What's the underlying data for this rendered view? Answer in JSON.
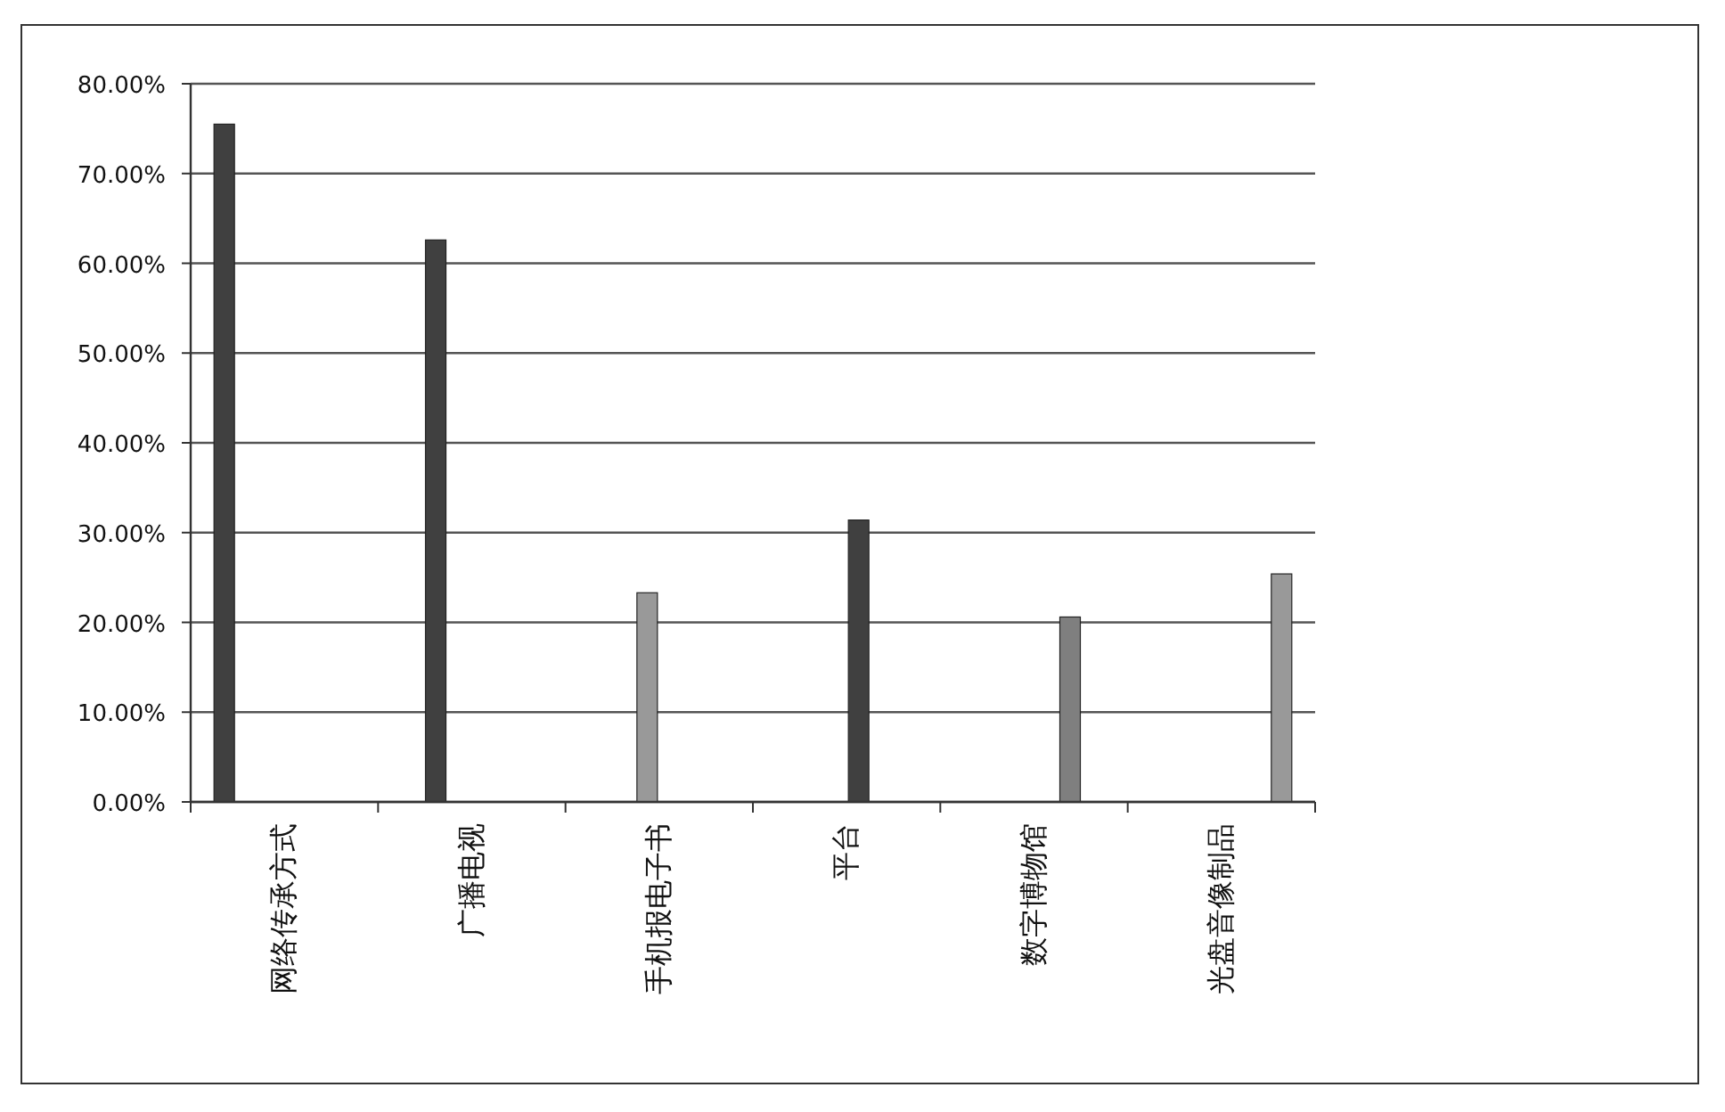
{
  "chart_data": {
    "type": "bar",
    "categories": [
      "网络传承方式",
      "广播电视",
      "手机报电子书",
      "平台",
      "数字博物馆",
      "光盘音像制品"
    ],
    "series": [
      {
        "color": "#404040",
        "values": [
          75.5,
          null,
          null,
          null,
          null,
          null
        ]
      },
      {
        "color": "#404040",
        "values": [
          null,
          62.6,
          null,
          null,
          null,
          null
        ]
      },
      {
        "color": "#999999",
        "values": [
          null,
          null,
          23.3,
          null,
          null,
          null
        ]
      },
      {
        "color": "#404040",
        "values": [
          null,
          null,
          null,
          31.4,
          null,
          null
        ]
      },
      {
        "color": "#7f7f7f",
        "values": [
          null,
          null,
          null,
          null,
          20.6,
          null
        ]
      },
      {
        "color": "#999999",
        "values": [
          null,
          null,
          null,
          null,
          null,
          25.4
        ]
      }
    ],
    "ylim": [
      0,
      80
    ],
    "yticks": [
      {
        "value": 0,
        "label": "0.00%"
      },
      {
        "value": 10,
        "label": "10.00%"
      },
      {
        "value": 20,
        "label": "20.00%"
      },
      {
        "value": 30,
        "label": "30.00%"
      },
      {
        "value": 40,
        "label": "40.00%"
      },
      {
        "value": 50,
        "label": "50.00%"
      },
      {
        "value": 60,
        "label": "60.00%"
      },
      {
        "value": 70,
        "label": "70.00%"
      },
      {
        "value": 80,
        "label": "80.00%"
      }
    ],
    "grid": "y"
  }
}
